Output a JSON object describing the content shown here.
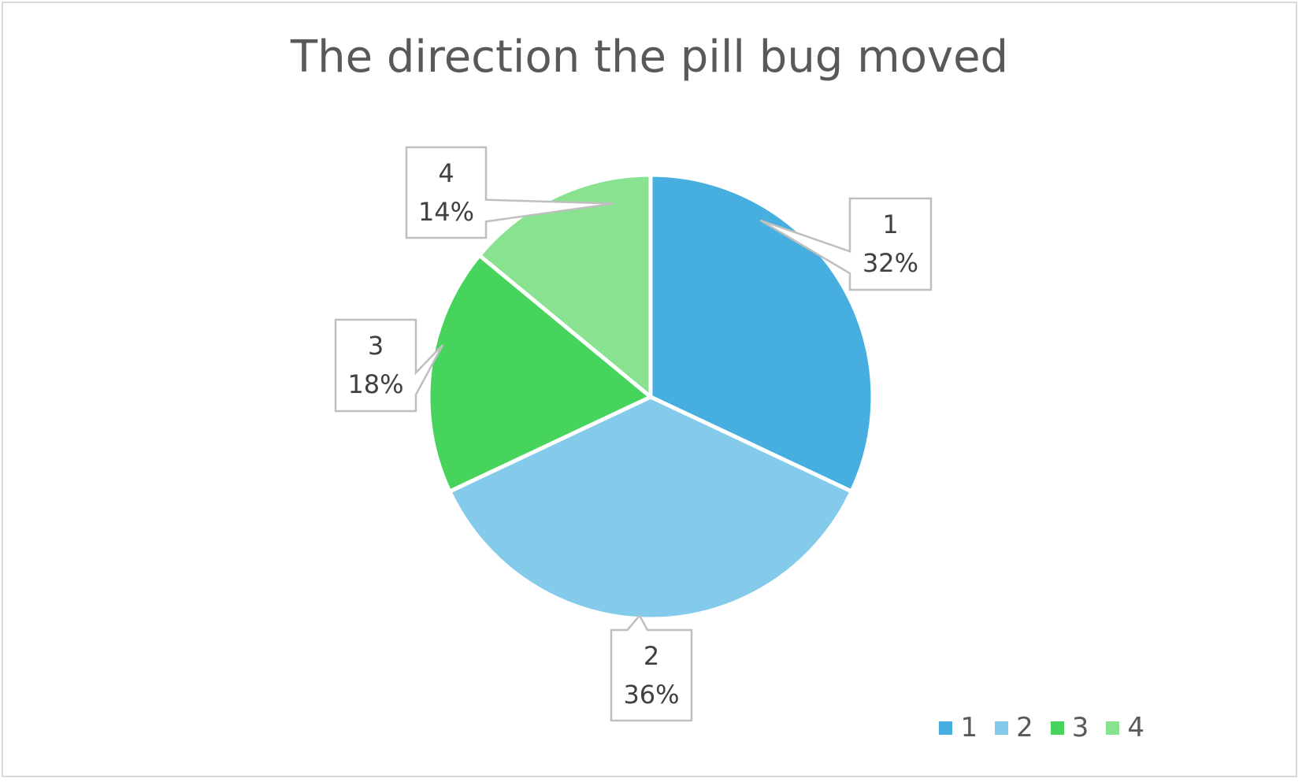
{
  "chart_data": {
    "type": "pie",
    "title": "The direction the pill bug moved",
    "categories": [
      "1",
      "2",
      "3",
      "4"
    ],
    "values": [
      32,
      36,
      18,
      14
    ],
    "data_labels": [
      {
        "category": "1",
        "percent": "32%"
      },
      {
        "category": "2",
        "percent": "36%"
      },
      {
        "category": "3",
        "percent": "18%"
      },
      {
        "category": "4",
        "percent": "14%"
      }
    ],
    "colors": [
      "#46afe0",
      "#84caeb",
      "#47d45c",
      "#89e290"
    ],
    "legend_position": "bottom-right",
    "legend": [
      "1",
      "2",
      "3",
      "4"
    ]
  }
}
